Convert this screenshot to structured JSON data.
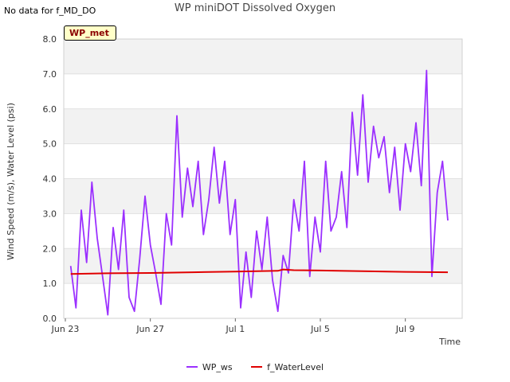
{
  "no_data_note": "No data for f_MD_DO",
  "chart_data": {
    "type": "line",
    "title": "WP miniDOT Dissolved Oxygen",
    "xlabel": "Time",
    "ylabel": "Wind Speed (m/s), Water Level (psi)",
    "site_badge": "WP_met",
    "ylim": [
      0,
      8
    ],
    "y_ticks": [
      "0.0",
      "1.0",
      "2.0",
      "3.0",
      "4.0",
      "5.0",
      "6.0",
      "7.0",
      "8.0"
    ],
    "x_range": [
      "2023-06-23",
      "2023-07-11"
    ],
    "x_ticks": [
      {
        "date": "2023-06-23",
        "label": "Jun 23"
      },
      {
        "date": "2023-06-27",
        "label": "Jun 27"
      },
      {
        "date": "2023-07-01",
        "label": "Jul 1"
      },
      {
        "date": "2023-07-05",
        "label": "Jul 5"
      },
      {
        "date": "2023-07-09",
        "label": "Jul 9"
      }
    ],
    "grid": true,
    "legend_position": "bottom-center",
    "series": [
      {
        "name": "WP_ws",
        "color": "#9b30ff",
        "x": [
          "2023-06-23 06:00",
          "2023-06-23 12:00",
          "2023-06-23 18:00",
          "2023-06-24 00:00",
          "2023-06-24 06:00",
          "2023-06-24 12:00",
          "2023-06-24 18:00",
          "2023-06-25 00:00",
          "2023-06-25 06:00",
          "2023-06-25 12:00",
          "2023-06-25 18:00",
          "2023-06-26 00:00",
          "2023-06-26 06:00",
          "2023-06-26 12:00",
          "2023-06-26 18:00",
          "2023-06-27 00:00",
          "2023-06-27 06:00",
          "2023-06-27 12:00",
          "2023-06-27 18:00",
          "2023-06-28 00:00",
          "2023-06-28 06:00",
          "2023-06-28 12:00",
          "2023-06-28 18:00",
          "2023-06-29 00:00",
          "2023-06-29 06:00",
          "2023-06-29 12:00",
          "2023-06-29 18:00",
          "2023-06-30 00:00",
          "2023-06-30 06:00",
          "2023-06-30 12:00",
          "2023-06-30 18:00",
          "2023-07-01 00:00",
          "2023-07-01 06:00",
          "2023-07-01 12:00",
          "2023-07-01 18:00",
          "2023-07-02 00:00",
          "2023-07-02 06:00",
          "2023-07-02 12:00",
          "2023-07-02 18:00",
          "2023-07-03 00:00",
          "2023-07-03 06:00",
          "2023-07-03 12:00",
          "2023-07-03 18:00",
          "2023-07-04 00:00",
          "2023-07-04 06:00",
          "2023-07-04 12:00",
          "2023-07-04 18:00",
          "2023-07-05 00:00",
          "2023-07-05 06:00",
          "2023-07-05 12:00",
          "2023-07-05 18:00",
          "2023-07-06 00:00",
          "2023-07-06 06:00",
          "2023-07-06 12:00",
          "2023-07-06 18:00",
          "2023-07-07 00:00",
          "2023-07-07 06:00",
          "2023-07-07 12:00",
          "2023-07-07 18:00",
          "2023-07-08 00:00",
          "2023-07-08 06:00",
          "2023-07-08 12:00",
          "2023-07-08 18:00",
          "2023-07-09 00:00",
          "2023-07-09 06:00",
          "2023-07-09 12:00",
          "2023-07-09 18:00",
          "2023-07-10 00:00",
          "2023-07-10 06:00",
          "2023-07-10 12:00",
          "2023-07-10 18:00",
          "2023-07-11 00:00"
        ],
        "y": [
          1.5,
          0.3,
          3.1,
          1.6,
          3.9,
          2.3,
          1.2,
          0.1,
          2.6,
          1.4,
          3.1,
          0.6,
          0.2,
          1.7,
          3.5,
          2.1,
          1.3,
          0.4,
          3.0,
          2.1,
          5.8,
          2.9,
          4.3,
          3.2,
          4.5,
          2.4,
          3.4,
          4.9,
          3.3,
          4.5,
          2.4,
          3.4,
          0.3,
          1.9,
          0.6,
          2.5,
          1.4,
          2.9,
          1.1,
          0.2,
          1.8,
          1.3,
          3.4,
          2.5,
          4.5,
          1.2,
          2.9,
          1.9,
          4.5,
          2.5,
          2.9,
          4.2,
          2.6,
          5.9,
          4.1,
          6.4,
          3.9,
          5.5,
          4.6,
          5.2,
          3.6,
          4.9,
          3.1,
          5.0,
          4.2,
          5.6,
          3.8,
          7.1,
          1.2,
          3.6,
          4.5,
          2.8
        ]
      },
      {
        "name": "f_WaterLevel",
        "color": "#e00000",
        "x": [
          "2023-06-23 06:00",
          "2023-06-25 00:00",
          "2023-06-27 00:00",
          "2023-06-29 00:00",
          "2023-07-01 00:00",
          "2023-07-03 00:00",
          "2023-07-03 06:00",
          "2023-07-03 18:00",
          "2023-07-05 00:00",
          "2023-07-07 00:00",
          "2023-07-09 00:00",
          "2023-07-11 00:00"
        ],
        "y": [
          1.27,
          1.29,
          1.3,
          1.32,
          1.34,
          1.36,
          1.4,
          1.38,
          1.37,
          1.35,
          1.33,
          1.32
        ]
      }
    ]
  }
}
